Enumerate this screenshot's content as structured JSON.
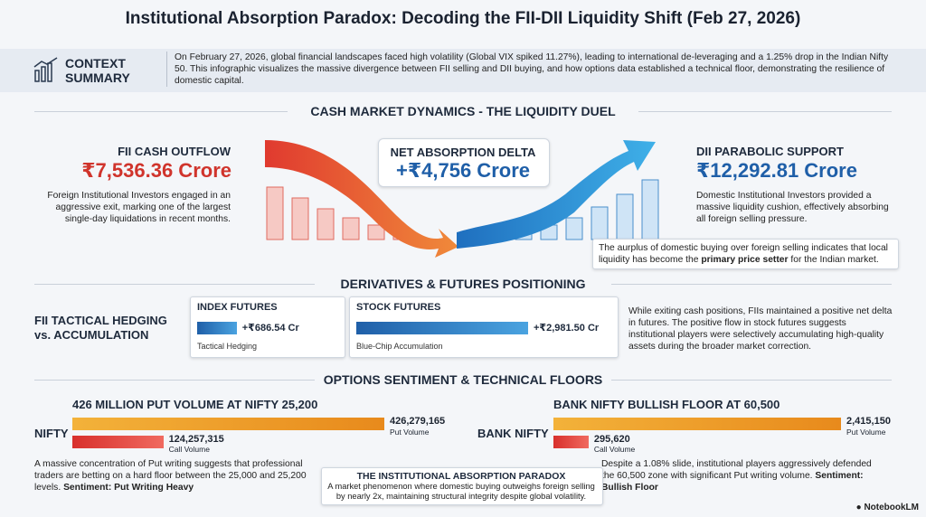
{
  "title": "Institutional Absorption Paradox: Decoding the FII-DII Liquidity Shift (Feb 27, 2026)",
  "context": {
    "heading": "CONTEXT SUMMARY",
    "text": "On February 27, 2026, global financial landscapes faced high volatility (Global VIX spiked 11.27%), leading to international de-leveraging and a 1.25% drop in the Indian Nifty 50. This infographic visualizes the massive divergence between FII selling and DII buying, and how options data established a technical floor, demonstrating the resilience of domestic capital."
  },
  "cash_market": {
    "heading": "CASH MARKET DYNAMICS - THE LIQUIDITY DUEL",
    "fii": {
      "label": "FII CASH OUTFLOW",
      "amount": "₹7,536.36 Crore",
      "description": "Foreign Institutional Investors engaged in an aggressive exit, marking one of the largest single-day liquidations in recent months."
    },
    "net": {
      "label": "NET ABSORPTION DELTA",
      "amount": "+₹4,756 Crore"
    },
    "dii": {
      "label": "DII PARABOLIC SUPPORT",
      "amount": "₹12,292.81 Crore",
      "description": "Domestic Institutional Investors provided a massive liquidity cushion, effectively absorbing all foreign selling pressure."
    },
    "note": {
      "before": "The aurplus of domestic buying over foreign selling indicates that local liquidity has become the",
      "bold": "primary price setter",
      "after": "for the Indian market."
    }
  },
  "derivatives": {
    "heading": "DERIVATIVES & FUTURES POSITIONING",
    "label": "FII TACTICAL HEDGING vs. ACCUMULATION",
    "index_futures": {
      "title": "INDEX FUTURES",
      "value": 686.54,
      "value_label": "+₹686.54 Cr",
      "caption": "Tactical Hedging"
    },
    "stock_futures": {
      "title": "STOCK FUTURES",
      "value": 2981.5,
      "value_label": "+₹2,981.50 Cr",
      "caption": "Blue-Chip Accumulation"
    },
    "description": "While exiting cash positions, FIIs maintained a positive net delta in futures. The positive flow in stock futures suggests institutional players were selectively accumulating high-quality assets during the broader market correction."
  },
  "options": {
    "heading": "OPTIONS SENTIMENT & TECHNICAL FLOORS",
    "nifty": {
      "headline": "426 MILLION PUT VOLUME AT NIFTY 25,200",
      "label": "NIFTY",
      "put": {
        "value": 426279165,
        "value_label": "426,279,165",
        "caption": "Put Volume"
      },
      "call": {
        "value": 124257315,
        "value_label": "124,257,315",
        "caption": "Call Volume"
      },
      "description": "A massive concentration of Put writing suggests that professional traders are betting on a hard floor between the 25,000 and 25,200 levels.",
      "sentiment": "Sentiment: Put Writing Heavy"
    },
    "bank_nifty": {
      "headline": "BANK NIFTY BULLISH FLOOR AT 60,500",
      "label": "BANK NIFTY",
      "put": {
        "value": 2415150,
        "value_label": "2,415,150",
        "caption": "Put Volume"
      },
      "call": {
        "value": 295620,
        "value_label": "295,620",
        "caption": "Call Volume"
      },
      "description": "Despite a 1.08% slide, institutional players aggressively defended the 60,500 zone with significant Put writing volume.",
      "sentiment": "Sentiment: Bullish Floor"
    },
    "paradox": {
      "title": "THE INSTITUTIONAL ABSORPTION PARADOX",
      "text": "A market phenomenon where domestic buying outweighs foreign selling by nearly 2x, maintaining structural integrity despite global volatility."
    }
  },
  "footer": "NotebookLM"
}
